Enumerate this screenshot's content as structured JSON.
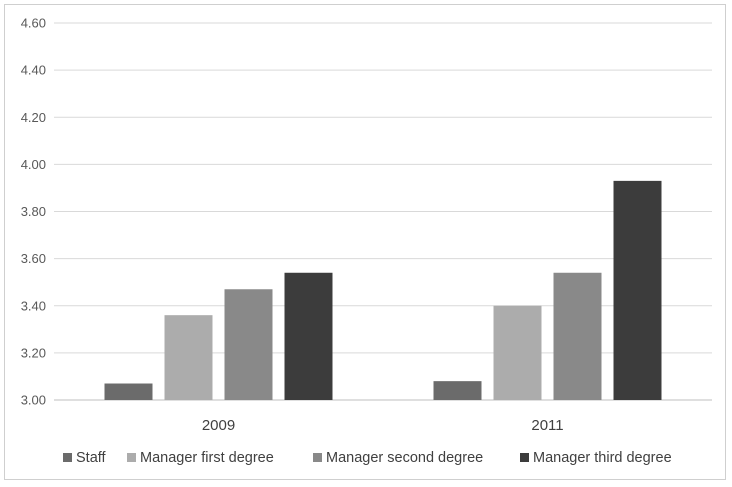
{
  "chart_data": {
    "type": "bar",
    "title": "",
    "xlabel": "",
    "ylabel": "",
    "categories": [
      "2009",
      "2011"
    ],
    "series": [
      {
        "name": "Staff",
        "values": [
          3.07,
          3.08
        ],
        "color": "#6b6b6b"
      },
      {
        "name": "Manager first degree",
        "values": [
          3.36,
          3.4
        ],
        "color": "#acacac"
      },
      {
        "name": "Manager second degree",
        "values": [
          3.47,
          3.54
        ],
        "color": "#898989"
      },
      {
        "name": "Manager third degree",
        "values": [
          3.54,
          3.93
        ],
        "color": "#3c3c3c"
      }
    ],
    "ylim": [
      3.0,
      4.6
    ],
    "yticks": [
      "3.00",
      "3.20",
      "3.40",
      "3.60",
      "3.80",
      "4.00",
      "4.20",
      "4.40",
      "4.60"
    ],
    "grid": true,
    "legend_position": "bottom"
  }
}
